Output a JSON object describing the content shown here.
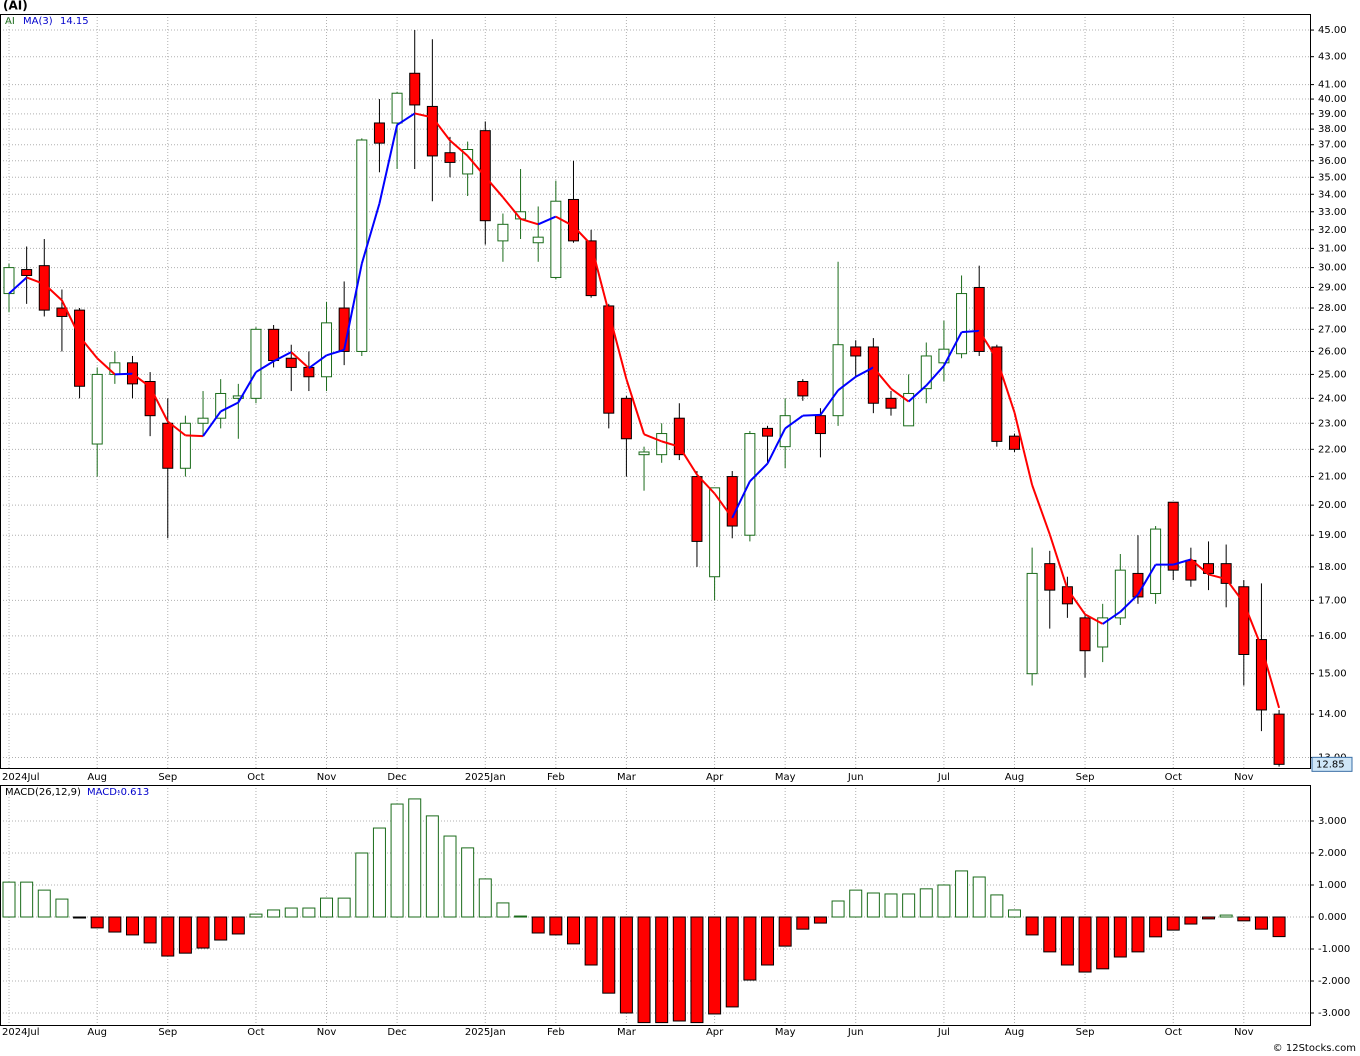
{
  "chart_data": [
    {
      "type": "candlestick",
      "title": "(AI)",
      "symbol": "AI",
      "scale": "log",
      "grid": true,
      "up_color": "#1a6b1a",
      "down_color": "#ff0000",
      "categories": [
        "2024Jul",
        null,
        null,
        null,
        null,
        "Aug",
        null,
        null,
        null,
        "Sep",
        null,
        null,
        null,
        null,
        "Oct",
        null,
        null,
        null,
        "Nov",
        null,
        null,
        null,
        "Dec",
        null,
        null,
        null,
        null,
        "2025Jan",
        null,
        null,
        null,
        "Feb",
        null,
        null,
        null,
        "Mar",
        null,
        null,
        null,
        null,
        "Apr",
        null,
        null,
        null,
        "May",
        null,
        null,
        null,
        "Jun",
        null,
        null,
        null,
        null,
        "Jul",
        null,
        null,
        null,
        "Aug",
        null,
        null,
        null,
        "Sep",
        null,
        null,
        null,
        null,
        "Oct",
        null,
        null,
        null,
        "Nov",
        null,
        null
      ],
      "open": [
        28.7,
        29.9,
        30.1,
        28.0,
        27.9,
        22.2,
        25.0,
        25.5,
        24.7,
        23.0,
        21.3,
        23.0,
        23.2,
        24.0,
        24.0,
        27.0,
        25.7,
        25.3,
        24.9,
        28.0,
        26.0,
        38.4,
        38.4,
        41.8,
        39.5,
        36.5,
        35.2,
        37.9,
        31.4,
        32.6,
        31.3,
        29.5,
        33.7,
        31.4,
        28.1,
        24.0,
        21.8,
        21.8,
        23.2,
        21.0,
        17.7,
        21.0,
        19.0,
        22.8,
        22.1,
        24.7,
        23.3,
        23.3,
        26.2,
        26.2,
        24.0,
        22.9,
        24.4,
        25.5,
        25.9,
        29.0,
        26.2,
        22.5,
        15.0,
        18.1,
        17.4,
        16.5,
        15.7,
        16.5,
        17.8,
        17.2,
        20.1,
        18.2,
        18.1,
        18.1,
        17.4,
        15.9,
        14.0
      ],
      "high": [
        30.2,
        31.1,
        31.5,
        28.9,
        28.0,
        25.3,
        26.0,
        25.8,
        25.1,
        24.0,
        23.3,
        24.3,
        24.8,
        24.6,
        27.1,
        27.2,
        26.3,
        26.0,
        28.3,
        29.3,
        37.4,
        40.0,
        40.5,
        45.0,
        44.3,
        37.5,
        37.2,
        38.5,
        32.9,
        35.5,
        33.3,
        34.8,
        36.0,
        32.0,
        28.2,
        24.1,
        22.1,
        23.0,
        23.8,
        21.2,
        20.6,
        21.2,
        22.7,
        22.9,
        24.0,
        24.8,
        23.6,
        30.3,
        26.5,
        26.6,
        24.3,
        25.0,
        26.4,
        27.4,
        29.6,
        30.1,
        26.3,
        22.6,
        18.6,
        18.5,
        17.7,
        16.6,
        16.9,
        18.4,
        19.0,
        19.3,
        20.1,
        18.6,
        18.8,
        18.7,
        17.6,
        17.5,
        14.1
      ],
      "low": [
        27.8,
        28.2,
        27.6,
        26.0,
        24.0,
        21.0,
        24.6,
        24.0,
        22.5,
        18.9,
        21.0,
        22.5,
        22.8,
        22.4,
        23.8,
        25.3,
        24.3,
        24.3,
        24.3,
        25.4,
        25.8,
        35.3,
        35.5,
        35.5,
        33.6,
        35.0,
        33.9,
        31.2,
        30.3,
        31.5,
        30.3,
        29.4,
        31.3,
        28.5,
        22.8,
        21.0,
        20.5,
        21.5,
        21.6,
        18.0,
        17.0,
        18.9,
        18.8,
        21.5,
        21.3,
        23.9,
        21.7,
        22.9,
        24.9,
        23.4,
        23.3,
        22.9,
        23.8,
        24.7,
        25.7,
        25.8,
        22.1,
        21.9,
        14.7,
        16.2,
        16.5,
        14.9,
        15.3,
        16.3,
        16.9,
        16.9,
        17.6,
        17.4,
        17.3,
        16.8,
        14.7,
        13.6,
        12.8
      ],
      "close": [
        30.0,
        29.6,
        27.9,
        27.6,
        24.5,
        25.0,
        25.5,
        24.6,
        23.3,
        21.3,
        23.0,
        23.2,
        24.2,
        24.1,
        27.0,
        25.6,
        25.3,
        24.9,
        27.3,
        26.0,
        37.3,
        37.1,
        40.4,
        39.6,
        36.3,
        35.9,
        36.7,
        32.5,
        32.3,
        33.0,
        31.6,
        33.6,
        31.4,
        28.6,
        23.4,
        22.4,
        21.9,
        22.6,
        21.8,
        18.8,
        20.6,
        19.3,
        22.6,
        22.5,
        23.3,
        24.1,
        22.6,
        26.3,
        25.8,
        23.8,
        23.6,
        24.2,
        25.8,
        26.1,
        28.7,
        26.0,
        22.3,
        22.0,
        17.8,
        17.3,
        16.9,
        15.6,
        16.5,
        17.9,
        17.1,
        19.2,
        17.9,
        17.6,
        17.8,
        17.5,
        15.5,
        14.1,
        12.85
      ],
      "ma": {
        "name": "MA(3)",
        "up_color": "#0000ff",
        "down_color": "#ff0000",
        "values": [
          28.7,
          29.5,
          29.17,
          28.37,
          26.67,
          25.7,
          25.0,
          25.03,
          24.47,
          23.07,
          22.53,
          22.5,
          23.47,
          23.83,
          25.1,
          25.57,
          25.97,
          25.27,
          25.83,
          26.07,
          30.2,
          33.47,
          38.27,
          39.03,
          38.77,
          37.27,
          36.3,
          35.03,
          33.83,
          32.6,
          32.3,
          32.73,
          32.2,
          31.2,
          27.8,
          24.8,
          22.57,
          22.3,
          22.1,
          21.07,
          20.4,
          19.57,
          20.83,
          21.47,
          22.8,
          23.3,
          23.33,
          24.33,
          24.9,
          25.3,
          24.4,
          23.87,
          24.53,
          25.37,
          26.87,
          26.93,
          25.67,
          23.43,
          20.7,
          19.03,
          17.33,
          16.6,
          16.33,
          16.67,
          17.17,
          18.07,
          18.07,
          18.23,
          17.77,
          17.63,
          16.93,
          15.7,
          14.15
        ]
      },
      "ylim": [
        12.77,
        46.25
      ],
      "yticks": [
        {
          "value": 45,
          "label": "45.00"
        },
        {
          "value": 43,
          "label": "43.00"
        },
        {
          "value": 41,
          "label": "41.00"
        },
        {
          "value": 40,
          "label": "40.00"
        },
        {
          "value": 39,
          "label": "39.00"
        },
        {
          "value": 38,
          "label": "38.00"
        },
        {
          "value": 37,
          "label": "37.00"
        },
        {
          "value": 36,
          "label": "36.00"
        },
        {
          "value": 35,
          "label": "35.00"
        },
        {
          "value": 34,
          "label": "34.00"
        },
        {
          "value": 33,
          "label": "33.00"
        },
        {
          "value": 32,
          "label": "32.00"
        },
        {
          "value": 31,
          "label": "31.00"
        },
        {
          "value": 30,
          "label": "30.00"
        },
        {
          "value": 29,
          "label": "29.00"
        },
        {
          "value": 28,
          "label": "28.00"
        },
        {
          "value": 27,
          "label": "27.00"
        },
        {
          "value": 26,
          "label": "26.00"
        },
        {
          "value": 25,
          "label": "25.00"
        },
        {
          "value": 24,
          "label": "24.00"
        },
        {
          "value": 23,
          "label": "23.00"
        },
        {
          "value": 22,
          "label": "22.00"
        },
        {
          "value": 21,
          "label": "21.00"
        },
        {
          "value": 20,
          "label": "20.00"
        },
        {
          "value": 19,
          "label": "19.00"
        },
        {
          "value": 18,
          "label": "18.00"
        },
        {
          "value": 17,
          "label": "17.00"
        },
        {
          "value": 16,
          "label": "16.00"
        },
        {
          "value": 15,
          "label": "15.00"
        },
        {
          "value": 14,
          "label": "14.00"
        },
        {
          "value": 13,
          "label": "13.00"
        }
      ]
    },
    {
      "type": "bar",
      "title": "MACD(26,12,9)",
      "value_name": "MACD:",
      "grid": true,
      "up_color": "#1a6b1a",
      "down_color": "#ff0000",
      "categories": [
        "2024Jul",
        null,
        null,
        null,
        null,
        "Aug",
        null,
        null,
        null,
        "Sep",
        null,
        null,
        null,
        null,
        "Oct",
        null,
        null,
        null,
        "Nov",
        null,
        null,
        null,
        "Dec",
        null,
        null,
        null,
        null,
        "2025Jan",
        null,
        null,
        null,
        "Feb",
        null,
        null,
        null,
        "Mar",
        null,
        null,
        null,
        null,
        "Apr",
        null,
        null,
        null,
        "May",
        null,
        null,
        null,
        "Jun",
        null,
        null,
        null,
        null,
        "Jul",
        null,
        null,
        null,
        "Aug",
        null,
        null,
        null,
        "Sep",
        null,
        null,
        null,
        null,
        "Oct",
        null,
        null,
        null,
        "Nov",
        null,
        null
      ],
      "values": [
        1.09,
        1.09,
        0.84,
        0.56,
        -0.03,
        -0.34,
        -0.47,
        -0.56,
        -0.81,
        -1.22,
        -1.13,
        -0.97,
        -0.72,
        -0.53,
        0.09,
        0.22,
        0.28,
        0.28,
        0.59,
        0.59,
        2.0,
        2.78,
        3.53,
        3.69,
        3.16,
        2.53,
        2.16,
        1.19,
        0.44,
        0.03,
        -0.5,
        -0.56,
        -0.84,
        -1.5,
        -2.38,
        -3.0,
        -3.3,
        -3.3,
        -3.25,
        -3.3,
        -3.03,
        -2.81,
        -1.97,
        -1.5,
        -0.91,
        -0.38,
        -0.19,
        0.5,
        0.84,
        0.75,
        0.72,
        0.72,
        0.88,
        1.0,
        1.44,
        1.25,
        0.69,
        0.22,
        -0.56,
        -1.09,
        -1.5,
        -1.72,
        -1.62,
        -1.25,
        -1.09,
        -0.62,
        -0.41,
        -0.22,
        -0.06,
        0.06,
        -0.12,
        -0.38,
        -0.613
      ],
      "ylim": [
        -3.375,
        4.125
      ],
      "yticks": [
        {
          "value": 3,
          "label": "3.000"
        },
        {
          "value": 2,
          "label": "2.000"
        },
        {
          "value": 1,
          "label": "1.000"
        },
        {
          "value": 0,
          "label": "0.000"
        },
        {
          "value": -1,
          "label": "-1.000"
        },
        {
          "value": -2,
          "label": "-2.000"
        },
        {
          "value": -3,
          "label": "-3.000"
        }
      ]
    }
  ],
  "footer": "© 12Stocks.com"
}
